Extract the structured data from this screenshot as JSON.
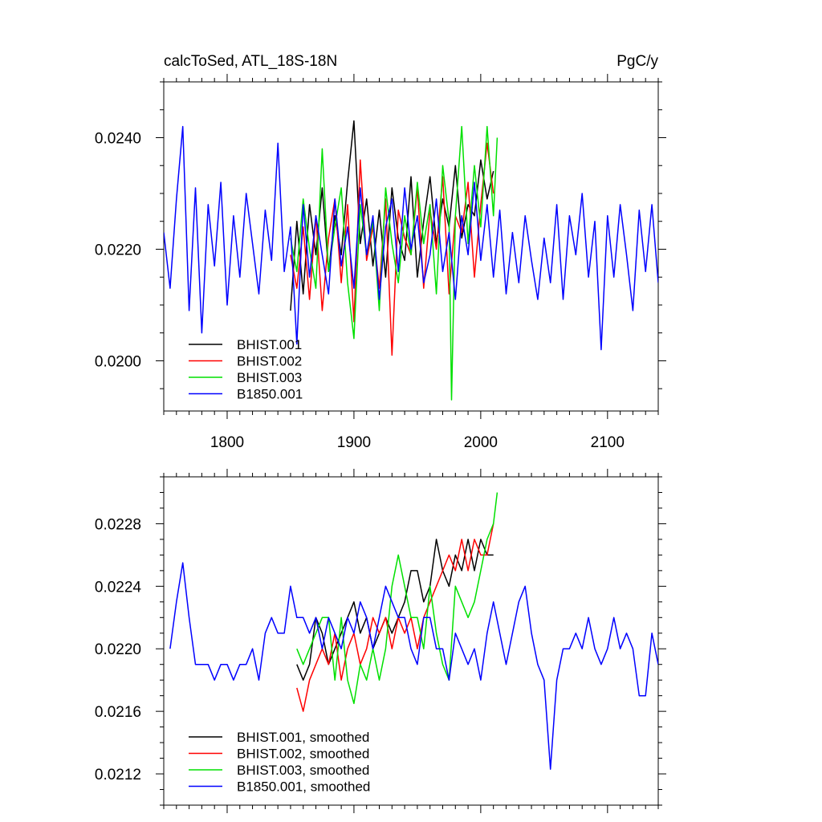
{
  "chart_data": [
    {
      "type": "line",
      "title": "calcToSed, ATL_18S-18N",
      "units": "PgC/y",
      "xlim": [
        1750,
        2140
      ],
      "ylim": [
        0.0191,
        0.025
      ],
      "x_ticks": [
        1800,
        1900,
        2000,
        2100
      ],
      "x_tick_labels": [
        "1800",
        "1900",
        "2000",
        "2100"
      ],
      "y_ticks": [
        0.02,
        0.022,
        0.024
      ],
      "y_tick_labels": [
        "0.0200",
        "0.0220",
        "0.0240"
      ],
      "legend_position": "lower-left",
      "series": [
        {
          "name": "BHIST.001",
          "color": "#000000",
          "x": [
            1850,
            1855,
            1860,
            1865,
            1870,
            1875,
            1880,
            1885,
            1890,
            1895,
            1900,
            1905,
            1910,
            1915,
            1920,
            1925,
            1930,
            1935,
            1940,
            1945,
            1950,
            1955,
            1960,
            1965,
            1970,
            1975,
            1980,
            1985,
            1990,
            1995,
            2000,
            2005,
            2010
          ],
          "y": [
            0.0209,
            0.0225,
            0.0212,
            0.0228,
            0.0219,
            0.0231,
            0.0216,
            0.0226,
            0.0219,
            0.0232,
            0.0243,
            0.0221,
            0.0229,
            0.0217,
            0.0227,
            0.0215,
            0.0231,
            0.0222,
            0.0218,
            0.0233,
            0.0215,
            0.0225,
            0.0233,
            0.0221,
            0.0229,
            0.0224,
            0.0235,
            0.0222,
            0.0228,
            0.0226,
            0.0236,
            0.0229,
            0.0234
          ]
        },
        {
          "name": "BHIST.002",
          "color": "#ff0000",
          "x": [
            1850,
            1855,
            1860,
            1865,
            1870,
            1875,
            1880,
            1885,
            1890,
            1895,
            1900,
            1905,
            1910,
            1915,
            1920,
            1925,
            1930,
            1935,
            1940,
            1945,
            1950,
            1955,
            1960,
            1965,
            1970,
            1975,
            1980,
            1985,
            1990,
            1995,
            2000,
            2005,
            2010
          ],
          "y": [
            0.0219,
            0.0213,
            0.0224,
            0.0211,
            0.0226,
            0.0209,
            0.0222,
            0.0229,
            0.0214,
            0.0228,
            0.0207,
            0.0236,
            0.0218,
            0.0224,
            0.0213,
            0.0229,
            0.0201,
            0.0227,
            0.0222,
            0.0219,
            0.0231,
            0.0213,
            0.0227,
            0.022,
            0.0233,
            0.0212,
            0.0226,
            0.0223,
            0.0232,
            0.0215,
            0.0228,
            0.0239,
            0.023
          ]
        },
        {
          "name": "BHIST.003",
          "color": "#00e000",
          "x": [
            1850,
            1855,
            1860,
            1865,
            1870,
            1875,
            1880,
            1885,
            1890,
            1895,
            1900,
            1905,
            1910,
            1915,
            1920,
            1925,
            1930,
            1935,
            1940,
            1945,
            1950,
            1955,
            1960,
            1965,
            1970,
            1975,
            1977,
            1980,
            1985,
            1990,
            1995,
            2000,
            2005,
            2010,
            2013
          ],
          "y": [
            0.0222,
            0.0216,
            0.0229,
            0.022,
            0.0213,
            0.0238,
            0.0216,
            0.0224,
            0.0231,
            0.0214,
            0.0204,
            0.0228,
            0.0219,
            0.0225,
            0.0209,
            0.0231,
            0.0221,
            0.0214,
            0.0226,
            0.0219,
            0.0232,
            0.0221,
            0.0228,
            0.0212,
            0.0235,
            0.0225,
            0.0193,
            0.0226,
            0.0242,
            0.0221,
            0.0235,
            0.0224,
            0.0242,
            0.0226,
            0.024
          ]
        },
        {
          "name": "B1850.001",
          "color": "#0000ff",
          "x": [
            1750,
            1755,
            1760,
            1765,
            1770,
            1775,
            1780,
            1785,
            1790,
            1795,
            1800,
            1805,
            1810,
            1815,
            1820,
            1825,
            1830,
            1835,
            1840,
            1845,
            1850,
            1855,
            1860,
            1865,
            1870,
            1875,
            1880,
            1885,
            1890,
            1895,
            1900,
            1905,
            1910,
            1915,
            1920,
            1925,
            1930,
            1935,
            1940,
            1945,
            1950,
            1955,
            1960,
            1965,
            1970,
            1975,
            1980,
            1985,
            1990,
            1995,
            2000,
            2005,
            2010,
            2015,
            2020,
            2025,
            2030,
            2035,
            2040,
            2045,
            2050,
            2055,
            2060,
            2065,
            2070,
            2075,
            2080,
            2085,
            2090,
            2095,
            2100,
            2105,
            2110,
            2115,
            2120,
            2125,
            2130,
            2135,
            2140
          ],
          "y": [
            0.0223,
            0.0213,
            0.0229,
            0.0242,
            0.0209,
            0.0231,
            0.0205,
            0.0228,
            0.0217,
            0.0232,
            0.021,
            0.0226,
            0.0215,
            0.023,
            0.0221,
            0.0212,
            0.0227,
            0.0218,
            0.0239,
            0.0216,
            0.0224,
            0.0203,
            0.0228,
            0.0215,
            0.0226,
            0.0219,
            0.0212,
            0.0229,
            0.0217,
            0.0224,
            0.0213,
            0.0231,
            0.0219,
            0.0226,
            0.0211,
            0.0224,
            0.0229,
            0.0216,
            0.0231,
            0.022,
            0.0226,
            0.0214,
            0.0219,
            0.0229,
            0.0216,
            0.0223,
            0.0211,
            0.0226,
            0.0219,
            0.0232,
            0.0218,
            0.0228,
            0.0215,
            0.0227,
            0.0212,
            0.0223,
            0.0214,
            0.0226,
            0.0218,
            0.0211,
            0.0222,
            0.0214,
            0.0228,
            0.0211,
            0.0226,
            0.0219,
            0.023,
            0.0215,
            0.0225,
            0.0202,
            0.0226,
            0.0215,
            0.0228,
            0.0219,
            0.0209,
            0.0227,
            0.0216,
            0.0228,
            0.0214
          ]
        }
      ]
    },
    {
      "type": "line",
      "xlim": [
        1750,
        2140
      ],
      "ylim": [
        0.021,
        0.0231
      ],
      "x_ticks": [
        1800,
        1900,
        2000,
        2100
      ],
      "y_ticks": [
        0.0212,
        0.0216,
        0.022,
        0.0224,
        0.0228
      ],
      "y_tick_labels": [
        "0.0212",
        "0.0216",
        "0.0220",
        "0.0224",
        "0.0228"
      ],
      "legend_position": "lower-left",
      "series": [
        {
          "name": "BHIST.001, smoothed",
          "color": "#000000",
          "x": [
            1855,
            1860,
            1865,
            1870,
            1875,
            1880,
            1885,
            1890,
            1895,
            1900,
            1905,
            1910,
            1915,
            1920,
            1925,
            1930,
            1935,
            1940,
            1945,
            1950,
            1955,
            1960,
            1965,
            1970,
            1975,
            1980,
            1985,
            1990,
            1995,
            2000,
            2005,
            2010
          ],
          "y": [
            0.0219,
            0.0218,
            0.0219,
            0.0222,
            0.0221,
            0.0219,
            0.022,
            0.0221,
            0.0222,
            0.0223,
            0.0221,
            0.0222,
            0.022,
            0.0221,
            0.0222,
            0.0221,
            0.0222,
            0.0223,
            0.0225,
            0.0225,
            0.0223,
            0.0224,
            0.0227,
            0.0225,
            0.0224,
            0.0226,
            0.0225,
            0.0227,
            0.0225,
            0.0227,
            0.0226,
            0.0226
          ]
        },
        {
          "name": "BHIST.002, smoothed",
          "color": "#ff0000",
          "x": [
            1855,
            1860,
            1865,
            1870,
            1875,
            1880,
            1885,
            1890,
            1895,
            1900,
            1905,
            1910,
            1915,
            1920,
            1925,
            1930,
            1935,
            1940,
            1945,
            1950,
            1955,
            1960,
            1965,
            1970,
            1975,
            1980,
            1985,
            1990,
            1995,
            2000,
            2005,
            2010
          ],
          "y": [
            0.02175,
            0.0216,
            0.0218,
            0.0219,
            0.022,
            0.0219,
            0.0221,
            0.0218,
            0.022,
            0.0221,
            0.0219,
            0.022,
            0.0222,
            0.0221,
            0.0222,
            0.022,
            0.0222,
            0.0221,
            0.0222,
            0.022,
            0.0222,
            0.0223,
            0.0224,
            0.0225,
            0.0226,
            0.0225,
            0.0227,
            0.0225,
            0.0227,
            0.0226,
            0.0226,
            0.0228
          ]
        },
        {
          "name": "BHIST.003, smoothed",
          "color": "#00e000",
          "x": [
            1855,
            1860,
            1865,
            1870,
            1875,
            1880,
            1885,
            1890,
            1895,
            1900,
            1905,
            1910,
            1915,
            1920,
            1925,
            1930,
            1935,
            1940,
            1945,
            1950,
            1955,
            1960,
            1965,
            1970,
            1975,
            1980,
            1985,
            1990,
            1995,
            2000,
            2005,
            2010,
            2013
          ],
          "y": [
            0.022,
            0.0219,
            0.022,
            0.0221,
            0.0222,
            0.0222,
            0.0218,
            0.0222,
            0.0218,
            0.02165,
            0.0219,
            0.0218,
            0.022,
            0.0218,
            0.022,
            0.0224,
            0.0226,
            0.0224,
            0.0222,
            0.0222,
            0.022,
            0.0224,
            0.0221,
            0.0219,
            0.0218,
            0.0224,
            0.0223,
            0.0222,
            0.0223,
            0.0225,
            0.0227,
            0.0228,
            0.023
          ]
        },
        {
          "name": "B1850.001, smoothed",
          "color": "#0000ff",
          "x": [
            1755,
            1760,
            1765,
            1770,
            1775,
            1780,
            1785,
            1790,
            1795,
            1800,
            1805,
            1810,
            1815,
            1820,
            1825,
            1830,
            1835,
            1840,
            1845,
            1850,
            1855,
            1860,
            1865,
            1870,
            1875,
            1880,
            1885,
            1890,
            1895,
            1900,
            1905,
            1910,
            1915,
            1920,
            1925,
            1930,
            1935,
            1940,
            1945,
            1950,
            1955,
            1960,
            1965,
            1970,
            1975,
            1980,
            1985,
            1990,
            1995,
            2000,
            2005,
            2010,
            2015,
            2020,
            2025,
            2030,
            2035,
            2040,
            2045,
            2050,
            2055,
            2060,
            2065,
            2070,
            2075,
            2080,
            2085,
            2090,
            2095,
            2100,
            2105,
            2110,
            2115,
            2120,
            2125,
            2130,
            2135,
            2140
          ],
          "y": [
            0.022,
            0.0223,
            0.02255,
            0.0222,
            0.0219,
            0.0219,
            0.0219,
            0.0218,
            0.0219,
            0.0219,
            0.0218,
            0.0219,
            0.0219,
            0.022,
            0.0218,
            0.0221,
            0.0222,
            0.0221,
            0.0221,
            0.0224,
            0.0222,
            0.0222,
            0.0221,
            0.0222,
            0.022,
            0.0222,
            0.0221,
            0.022,
            0.0222,
            0.0221,
            0.0223,
            0.0222,
            0.022,
            0.0222,
            0.0224,
            0.0223,
            0.0222,
            0.0222,
            0.022,
            0.0219,
            0.0222,
            0.0222,
            0.022,
            0.022,
            0.0218,
            0.0221,
            0.022,
            0.0219,
            0.022,
            0.0218,
            0.0221,
            0.0223,
            0.0221,
            0.0219,
            0.0221,
            0.0223,
            0.0224,
            0.0221,
            0.0219,
            0.0218,
            0.02123,
            0.0218,
            0.022,
            0.022,
            0.0221,
            0.022,
            0.0222,
            0.022,
            0.0219,
            0.022,
            0.0222,
            0.022,
            0.0221,
            0.022,
            0.0217,
            0.0217,
            0.0221,
            0.0219
          ]
        }
      ]
    }
  ]
}
